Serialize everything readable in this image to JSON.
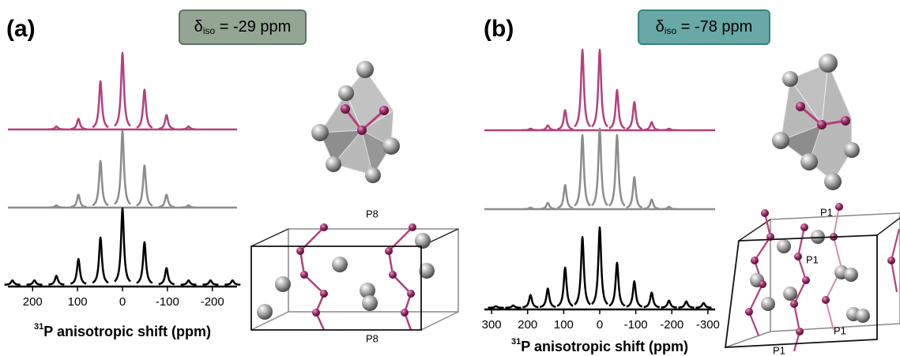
{
  "chart_data": [
    {
      "type": "spectrum",
      "panel_label": "(a)",
      "annotation": {
        "symbol": "δ",
        "subscript": "iso",
        "text": " = -29 ppm"
      },
      "xlabel": {
        "superscript": "31",
        "text": "P anisotropic shift (ppm)"
      },
      "xlim": [
        255,
        -255
      ],
      "xticks": [
        200,
        100,
        0,
        -100,
        -200
      ],
      "ylim": [
        0,
        100
      ],
      "x": [
        245,
        196,
        147,
        98,
        49,
        0,
        -49,
        -98,
        -147,
        -196,
        -245
      ],
      "series": [
        {
          "color": "#b5407a",
          "values": [
            null,
            null,
            4,
            14,
            63,
            100,
            52,
            19,
            4,
            null,
            null
          ]
        },
        {
          "color": "#8c8c8c",
          "values": [
            null,
            null,
            3,
            17,
            61,
            100,
            55,
            17,
            3,
            null,
            null
          ]
        },
        {
          "color": "#000000",
          "values": [
            6,
            6,
            12,
            34,
            62,
            100,
            56,
            22,
            6,
            6,
            6
          ]
        }
      ],
      "structure_labels": [
        "P8",
        "P8"
      ]
    },
    {
      "type": "spectrum",
      "panel_label": "(b)",
      "annotation": {
        "symbol": "δ",
        "subscript": "iso",
        "text": " = -78 ppm"
      },
      "xlabel": {
        "superscript": "31",
        "text": "P anisotropic shift (ppm)"
      },
      "xlim": [
        320,
        -320
      ],
      "xticks": [
        300,
        200,
        100,
        0,
        -100,
        -200,
        -300
      ],
      "ylim": [
        0,
        100
      ],
      "x": [
        288,
        240,
        192,
        144,
        96,
        48,
        0,
        -48,
        -96,
        -144,
        -192,
        -240,
        -288
      ],
      "series": [
        {
          "color": "#b5407a",
          "values": [
            null,
            null,
            2,
            6,
            25,
            100,
            100,
            50,
            35,
            10,
            2,
            null,
            null
          ]
        },
        {
          "color": "#8c8c8c",
          "values": [
            null,
            null,
            2,
            8,
            30,
            92,
            100,
            92,
            40,
            12,
            3,
            null,
            null
          ]
        },
        {
          "color": "#000000",
          "values": [
            2,
            3,
            16,
            24,
            50,
            88,
            100,
            56,
            33,
            19,
            9,
            8,
            6
          ]
        }
      ],
      "structure_labels": [
        "P1",
        "P1",
        "P1",
        "P1"
      ]
    }
  ]
}
